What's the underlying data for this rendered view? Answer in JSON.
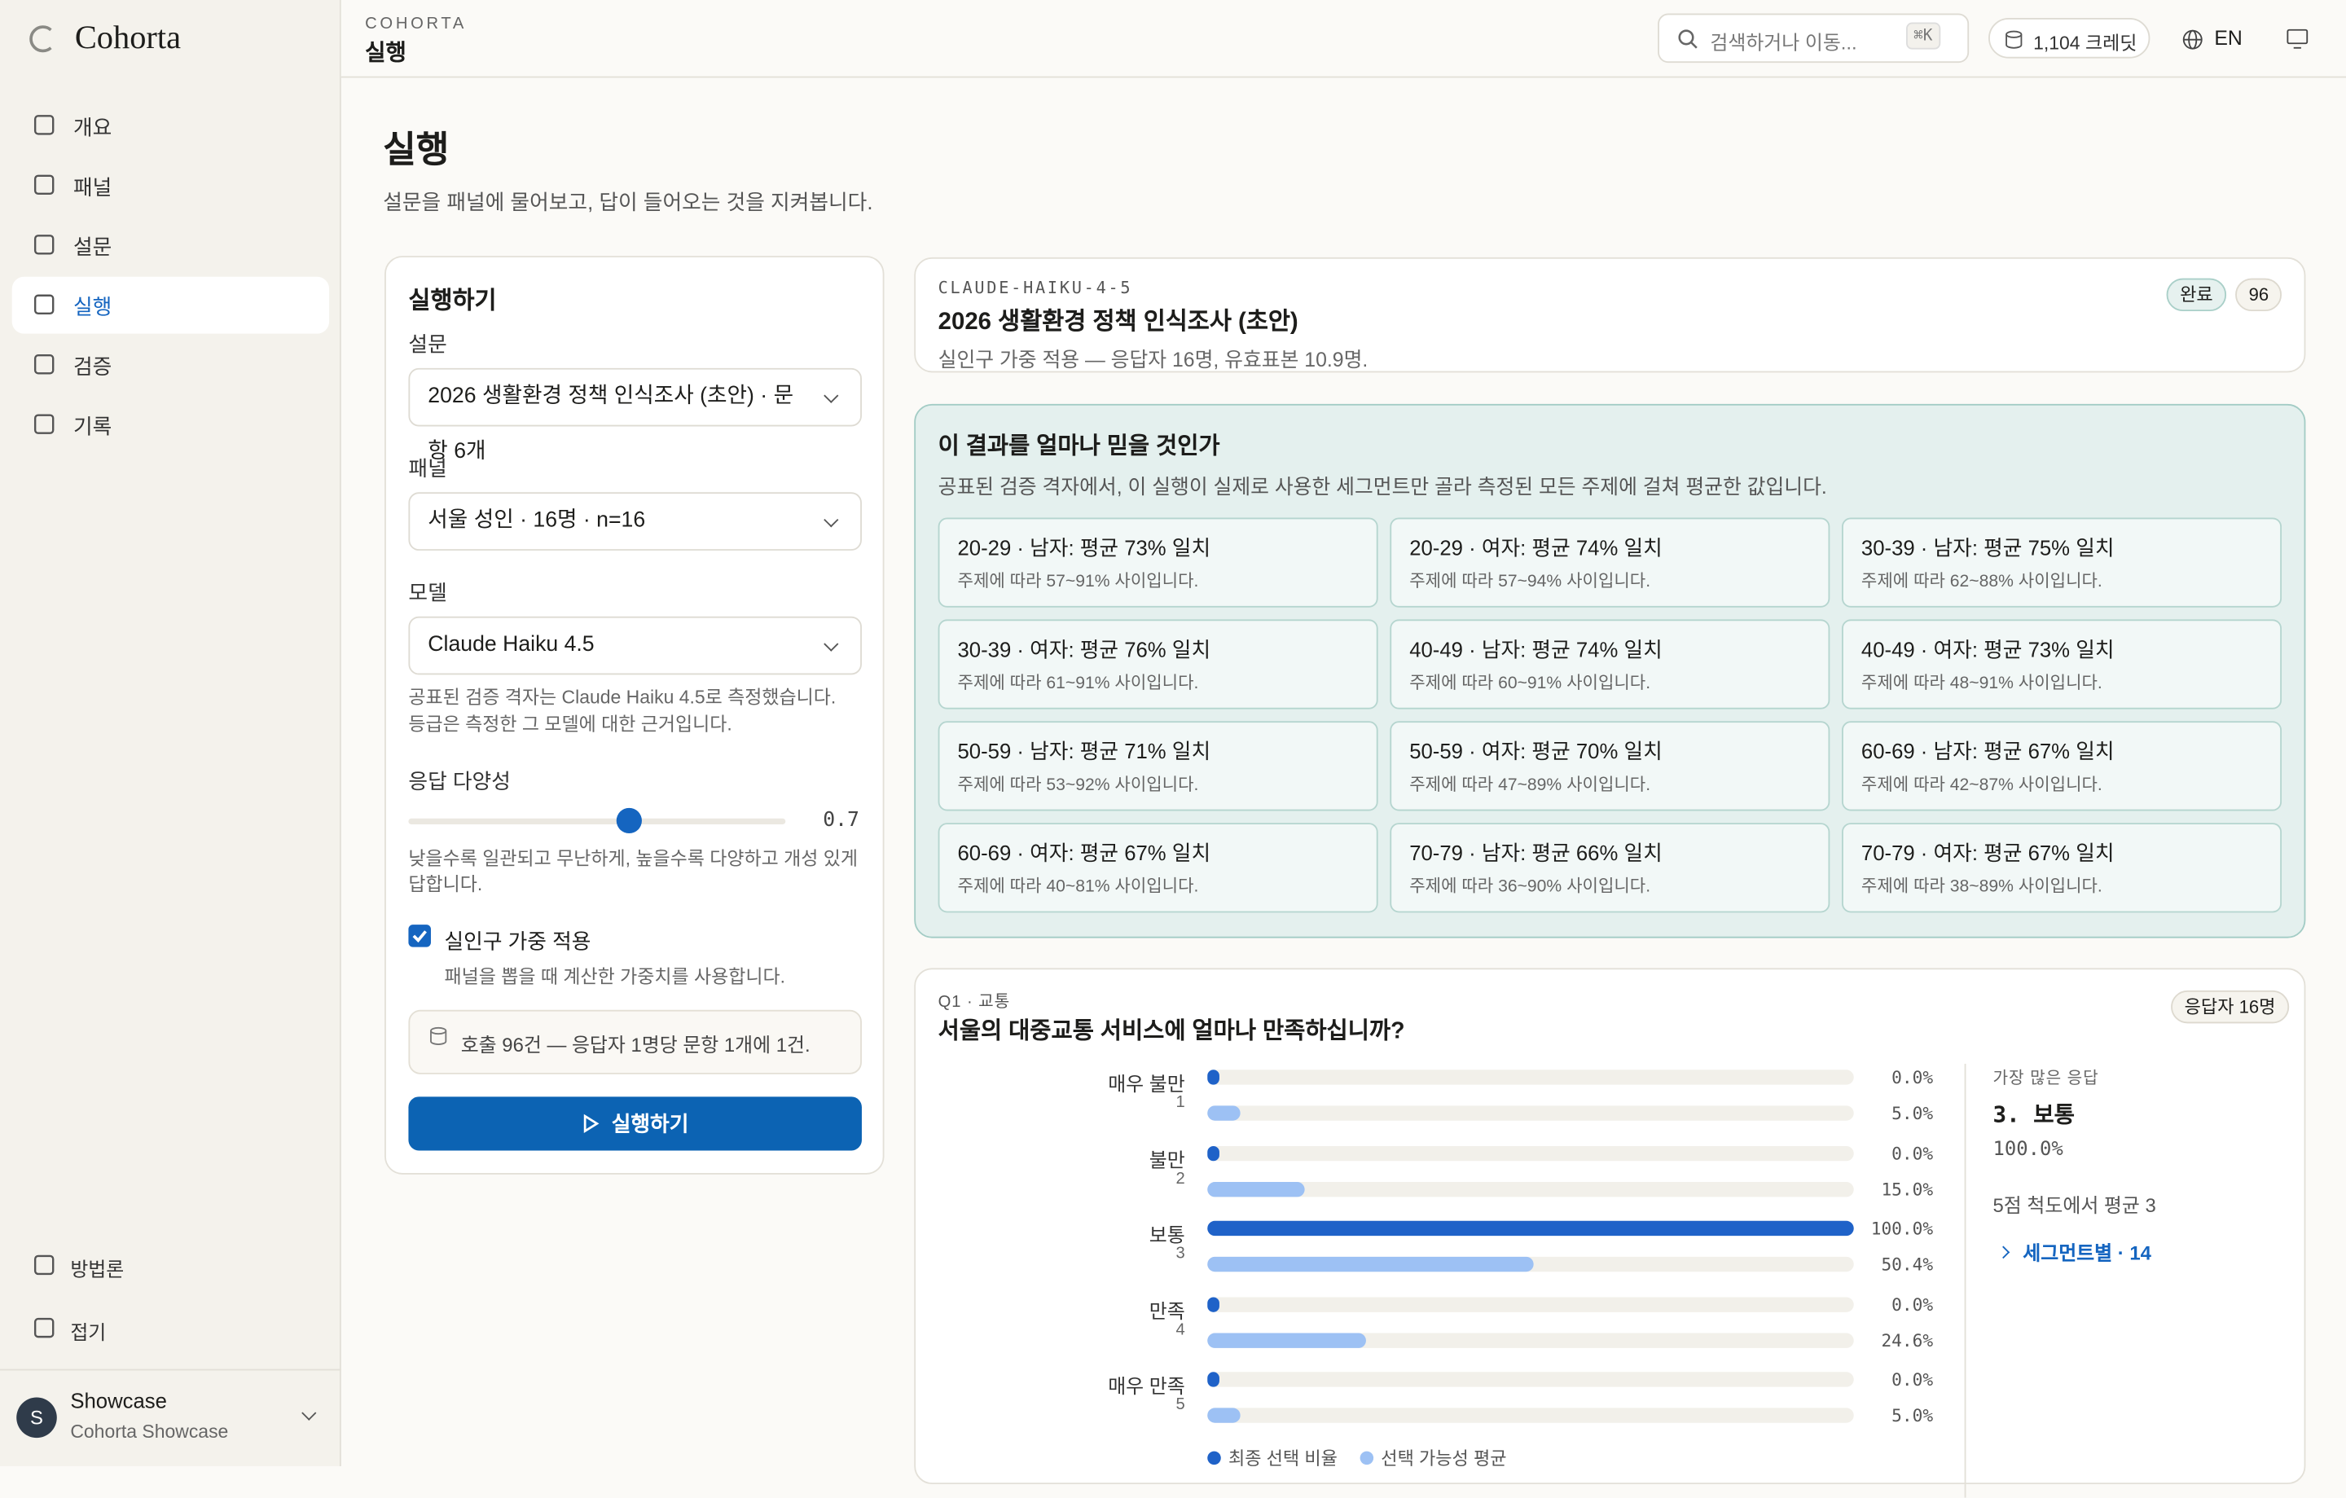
{
  "sidebar": {
    "brand": "Cohorta",
    "nav": [
      "개요",
      "패널",
      "설문",
      "실행",
      "검증",
      "기록"
    ],
    "active": 3,
    "footer_nav": [
      "방법론",
      "접기"
    ],
    "user": {
      "initial": "S",
      "name": "Showcase",
      "org": "Cohorta Showcase"
    }
  },
  "topbar": {
    "eyebrow": "COHORTA",
    "title": "실행",
    "search": "검색하거나 이동...",
    "shortcut": "⌘K",
    "credits": "1,104 크레딧",
    "lang": "EN"
  },
  "page": {
    "title": "실행",
    "subtitle": "설문을 패널에 물어보고, 답이 들어오는 것을 지켜봅니다."
  },
  "form": {
    "title": "실행하기",
    "survey_label": "설문",
    "survey_value": "2026 생활환경 정책 인식조사 (초안) · 문항 6개",
    "panel_label": "패널",
    "panel_value": "서울 성인 · 16명 · n=16",
    "model_label": "모델",
    "model_value": "Claude Haiku 4.5",
    "model_help": [
      "공표된 검증 격자는 Claude Haiku 4.5로 측정했습니다.",
      "등급은 측정한 그 모델에 대한 근거입니다."
    ],
    "diversity_label": "응답 다양성",
    "diversity": 0.7,
    "diversity_range": [
      0,
      1.2
    ],
    "diversity_help": [
      "낮을수록 일관되고 무난하게, 높을수록 다양하고 개성 있게",
      "답합니다."
    ],
    "weight_checked": true,
    "weight_label": "실인구 가중 적용",
    "weight_help": "패널을 뽑을 때 계산한 가중치를 사용합니다.",
    "calls_note": "호출 96건 — 응답자 1명당 문항 1개에 1건.",
    "button": "실행하기"
  },
  "run": {
    "model": "CLAUDE-HAIKU-4-5",
    "title": "2026 생활환경 정책 인식조사 (초안)",
    "subtitle": "실인구 가중 적용 — 응답자 16명, 유효표본 10.9명.",
    "status": "완료",
    "count": "96"
  },
  "trust": {
    "title": "이 결과를 얼마나 믿을 것인가",
    "description": "공표된 검증 격자에서, 이 실행이 실제로 사용한 세그먼트만 골라 측정된 모든 주제에 걸쳐 평균한 값입니다.",
    "cells": [
      {
        "title": "20-29 · 남자: 평균 73% 일치",
        "range": "주제에 따라 57~91% 사이입니다."
      },
      {
        "title": "20-29 · 여자: 평균 74% 일치",
        "range": "주제에 따라 57~94% 사이입니다."
      },
      {
        "title": "30-39 · 남자: 평균 75% 일치",
        "range": "주제에 따라 62~88% 사이입니다."
      },
      {
        "title": "30-39 · 여자: 평균 76% 일치",
        "range": "주제에 따라 61~91% 사이입니다."
      },
      {
        "title": "40-49 · 남자: 평균 74% 일치",
        "range": "주제에 따라 60~91% 사이입니다."
      },
      {
        "title": "40-49 · 여자: 평균 73% 일치",
        "range": "주제에 따라 48~91% 사이입니다."
      },
      {
        "title": "50-59 · 남자: 평균 71% 일치",
        "range": "주제에 따라 53~92% 사이입니다."
      },
      {
        "title": "50-59 · 여자: 평균 70% 일치",
        "range": "주제에 따라 47~89% 사이입니다."
      },
      {
        "title": "60-69 · 남자: 평균 67% 일치",
        "range": "주제에 따라 42~87% 사이입니다."
      },
      {
        "title": "60-69 · 여자: 평균 67% 일치",
        "range": "주제에 따라 40~81% 사이입니다."
      },
      {
        "title": "70-79 · 남자: 평균 66% 일치",
        "range": "주제에 따라 36~90% 사이입니다."
      },
      {
        "title": "70-79 · 여자: 평균 67% 일치",
        "range": "주제에 따라 38~89% 사이입니다."
      }
    ]
  },
  "question": {
    "eyebrow": "Q1 · 교통",
    "title": "서울의 대중교통 서비스에 얼마나 만족하십니까?",
    "badge": "응답자 16명",
    "xlim": [
      0,
      100
    ],
    "series_colors": [
      "#1f62c8",
      "#9dc1f4"
    ],
    "options": [
      {
        "label": "매우 불만",
        "code": "1",
        "final": 0,
        "final_label": "0.0%",
        "avg": 5,
        "avg_label": "5.0%"
      },
      {
        "label": "불만",
        "code": "2",
        "final": 0,
        "final_label": "0.0%",
        "avg": 15,
        "avg_label": "15.0%"
      },
      {
        "label": "보통",
        "code": "3",
        "final": 100,
        "final_label": "100.0%",
        "avg": 50.4,
        "avg_label": "50.4%"
      },
      {
        "label": "만족",
        "code": "4",
        "final": 0,
        "final_label": "0.0%",
        "avg": 24.6,
        "avg_label": "24.6%"
      },
      {
        "label": "매우 만족",
        "code": "5",
        "final": 0,
        "final_label": "0.0%",
        "avg": 5,
        "avg_label": "5.0%"
      }
    ],
    "legend": [
      "최종 선택 비율",
      "선택 가능성 평균"
    ],
    "top_label": "가장 많은 응답",
    "top_answer": "3. 보통",
    "top_share": "100.0%",
    "mean_note": "5점 척도에서 평균 3",
    "segments_link": "세그먼트별 · 14"
  }
}
